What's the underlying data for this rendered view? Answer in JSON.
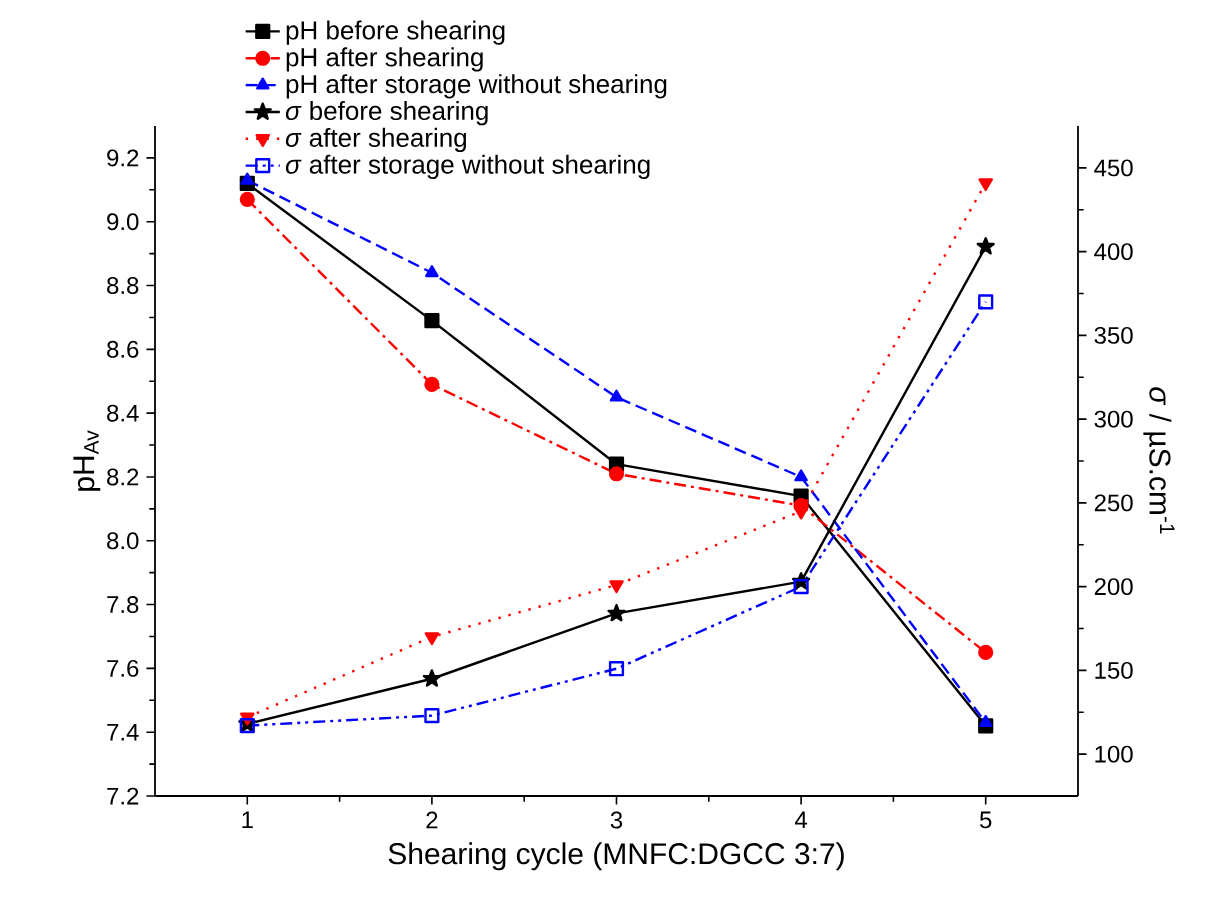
{
  "chart_data": {
    "type": "line",
    "xlabel": "Shearing cycle (MNFC:DGCC 3:7)",
    "ylabel": "pH$_{Av}$",
    "y2label": "*σ* / µS.cm$^{-1}$",
    "x": [
      1,
      2,
      3,
      4,
      5
    ],
    "xlim": [
      0.5,
      5.5
    ],
    "xticks": [
      1,
      2,
      3,
      4,
      5
    ],
    "ylim": [
      7.2,
      9.3
    ],
    "yticks": [
      7.2,
      7.4,
      7.6,
      7.8,
      {
        "value": 8.0,
        "label": "8.0"
      },
      8.2,
      8.4,
      8.6,
      8.8,
      {
        "value": 9.0,
        "label": "9.0"
      },
      9.2
    ],
    "y2lim": [
      75,
      475
    ],
    "y2ticks": [
      100,
      150,
      200,
      250,
      300,
      350,
      400,
      450
    ],
    "grid": false,
    "legend": "top",
    "series": [
      {
        "name": "pH before shearing",
        "color": "#000000",
        "marker": "square",
        "line_style": "solid",
        "values": [
          9.12,
          8.69,
          8.24,
          8.14,
          7.42
        ]
      },
      {
        "name": "pH after shearing",
        "color": "#ff0000",
        "marker": "circle",
        "line_style": "dashdot",
        "values": [
          9.07,
          8.49,
          8.21,
          8.11,
          7.65
        ]
      },
      {
        "name": "pH after storage without shearing",
        "color": "#0000ff",
        "marker": "triangle",
        "line_style": "dashed",
        "values": [
          9.13,
          8.84,
          8.45,
          8.2,
          7.43
        ]
      },
      {
        "name": "*σ* before shearing",
        "color": "#000000",
        "marker": "star",
        "line_style": "solid",
        "axis": "y2",
        "values": [
          118,
          145,
          184,
          203,
          403
        ]
      },
      {
        "name": "*σ* after shearing",
        "color": "#ff0000",
        "marker": "triangle-down",
        "line_style": "dotted",
        "axis": "y2",
        "values": [
          122,
          170,
          201,
          245,
          441
        ]
      },
      {
        "name": "*σ* after storage without shearing",
        "color": "#0000ff",
        "marker": "square-open",
        "line_style": "dashdotdot",
        "axis": "y2",
        "values": [
          117,
          123,
          151,
          200,
          370
        ]
      }
    ]
  }
}
